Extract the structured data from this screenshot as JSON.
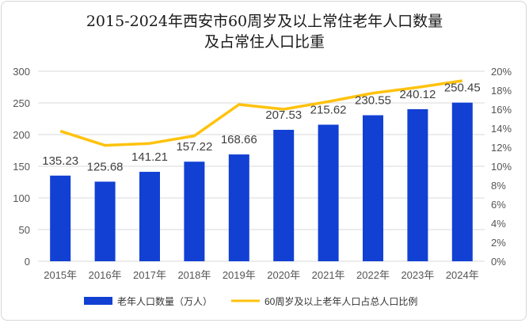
{
  "chart_data": {
    "type": "bar+line",
    "title_line1": "2015-2024年西安市60周岁及以上常住老年人口数量",
    "title_line2": "及占常住人口比重",
    "categories": [
      "2015年",
      "2016年",
      "2017年",
      "2018年",
      "2019年",
      "2020年",
      "2021年",
      "2022年",
      "2023年",
      "2024年"
    ],
    "series": [
      {
        "name": "老年人口数量（万人）",
        "type": "bar",
        "axis": "left",
        "values": [
          135.23,
          125.68,
          141.21,
          157.22,
          168.66,
          207.53,
          215.62,
          230.55,
          240.12,
          250.45
        ],
        "data_labels": [
          "135.23",
          "125.68",
          "141.21",
          "157.22",
          "168.66",
          "207.53",
          "215.62",
          "230.55",
          "240.12",
          "250.45"
        ]
      },
      {
        "name": "60周岁及以上老年人口占总人口比例",
        "type": "line",
        "axis": "right",
        "values": [
          13.7,
          12.2,
          12.4,
          13.2,
          16.5,
          16.0,
          16.8,
          17.7,
          18.3,
          19.0
        ]
      }
    ],
    "y_left": {
      "min": 0,
      "max": 300,
      "ticks": [
        "0",
        "50",
        "100",
        "150",
        "200",
        "250",
        "300"
      ]
    },
    "y_right": {
      "min": 0,
      "max": 20,
      "ticks": [
        "0%",
        "2%",
        "4%",
        "6%",
        "8%",
        "10%",
        "12%",
        "14%",
        "16%",
        "18%",
        "20%"
      ]
    },
    "grid": true,
    "legend_position": "bottom",
    "colors": {
      "bar": "#1140d3",
      "line": "#ffc20e",
      "grid": "#d9d9d9"
    }
  }
}
